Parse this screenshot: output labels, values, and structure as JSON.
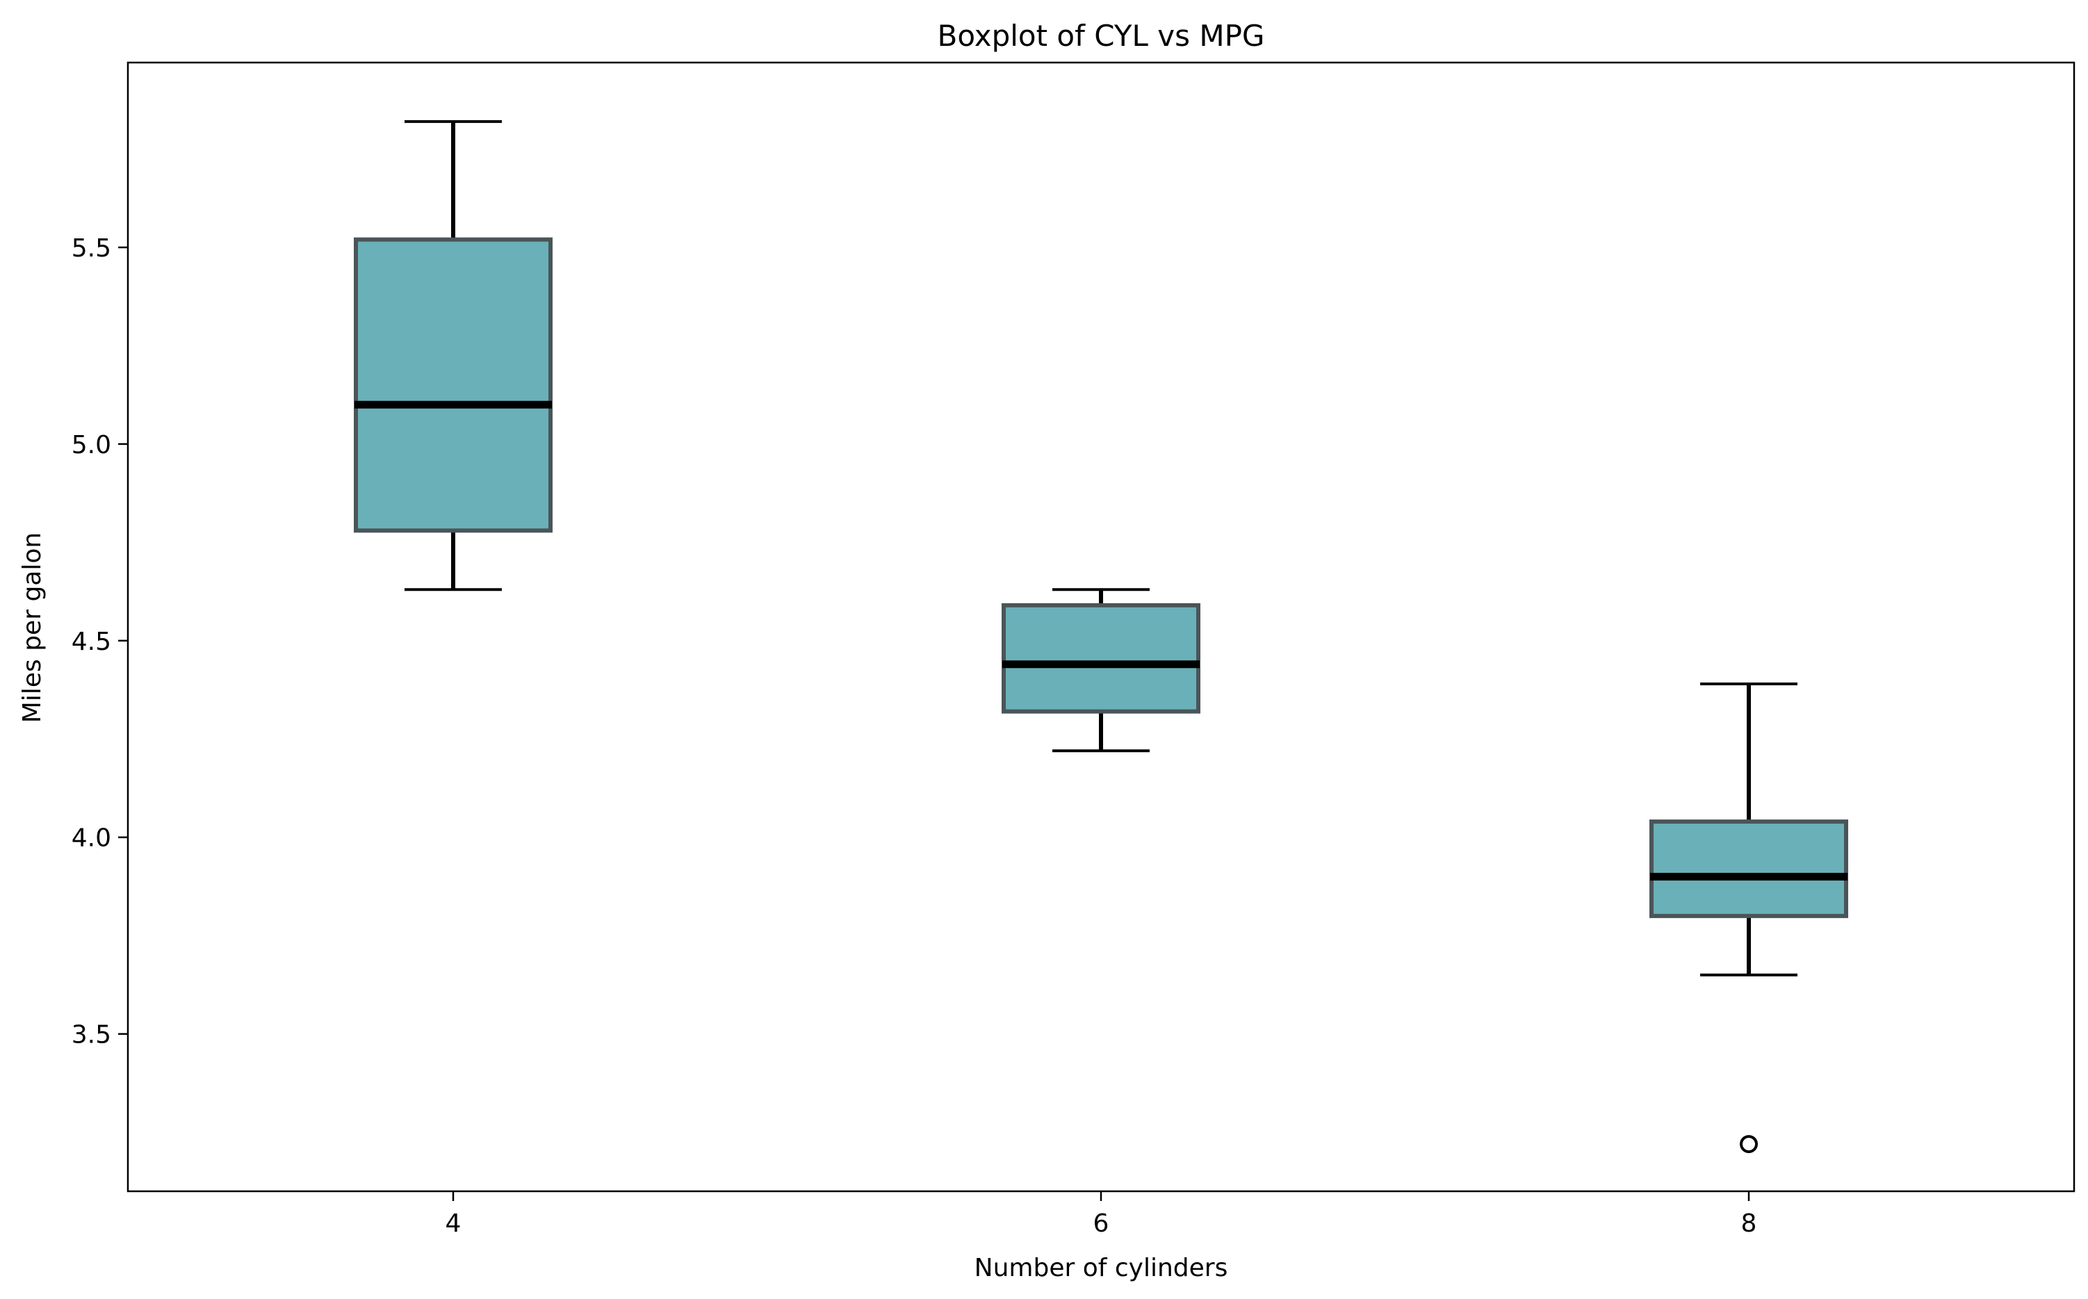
{
  "chart_data": {
    "type": "boxplot",
    "title": "Boxplot of CYL vs MPG",
    "xlabel": "Number of cylinders",
    "ylabel": "Miles per galon",
    "categories": [
      "4",
      "6",
      "8"
    ],
    "ylim": [
      3.1,
      5.97
    ],
    "yticks": [
      3.5,
      4.0,
      4.5,
      5.0,
      5.5
    ],
    "ytick_labels": [
      "3.5",
      "4.0",
      "4.5",
      "5.0",
      "5.5"
    ],
    "grid": false,
    "boxes": [
      {
        "category": "4",
        "whisker_low": 4.63,
        "q1": 4.78,
        "median": 5.1,
        "q3": 5.52,
        "whisker_high": 5.82,
        "outliers": []
      },
      {
        "category": "6",
        "whisker_low": 4.22,
        "q1": 4.32,
        "median": 4.44,
        "q3": 4.59,
        "whisker_high": 4.63,
        "outliers": []
      },
      {
        "category": "8",
        "whisker_low": 3.65,
        "q1": 3.8,
        "median": 3.9,
        "q3": 4.04,
        "whisker_high": 4.39,
        "outliers": [
          3.22
        ]
      }
    ],
    "colors": {
      "box_fill": "#6ab0b8",
      "box_edge": "#4a5558",
      "median": "#000000",
      "whisker": "#000000",
      "outlier": "#000000",
      "axes": "#000000"
    }
  }
}
